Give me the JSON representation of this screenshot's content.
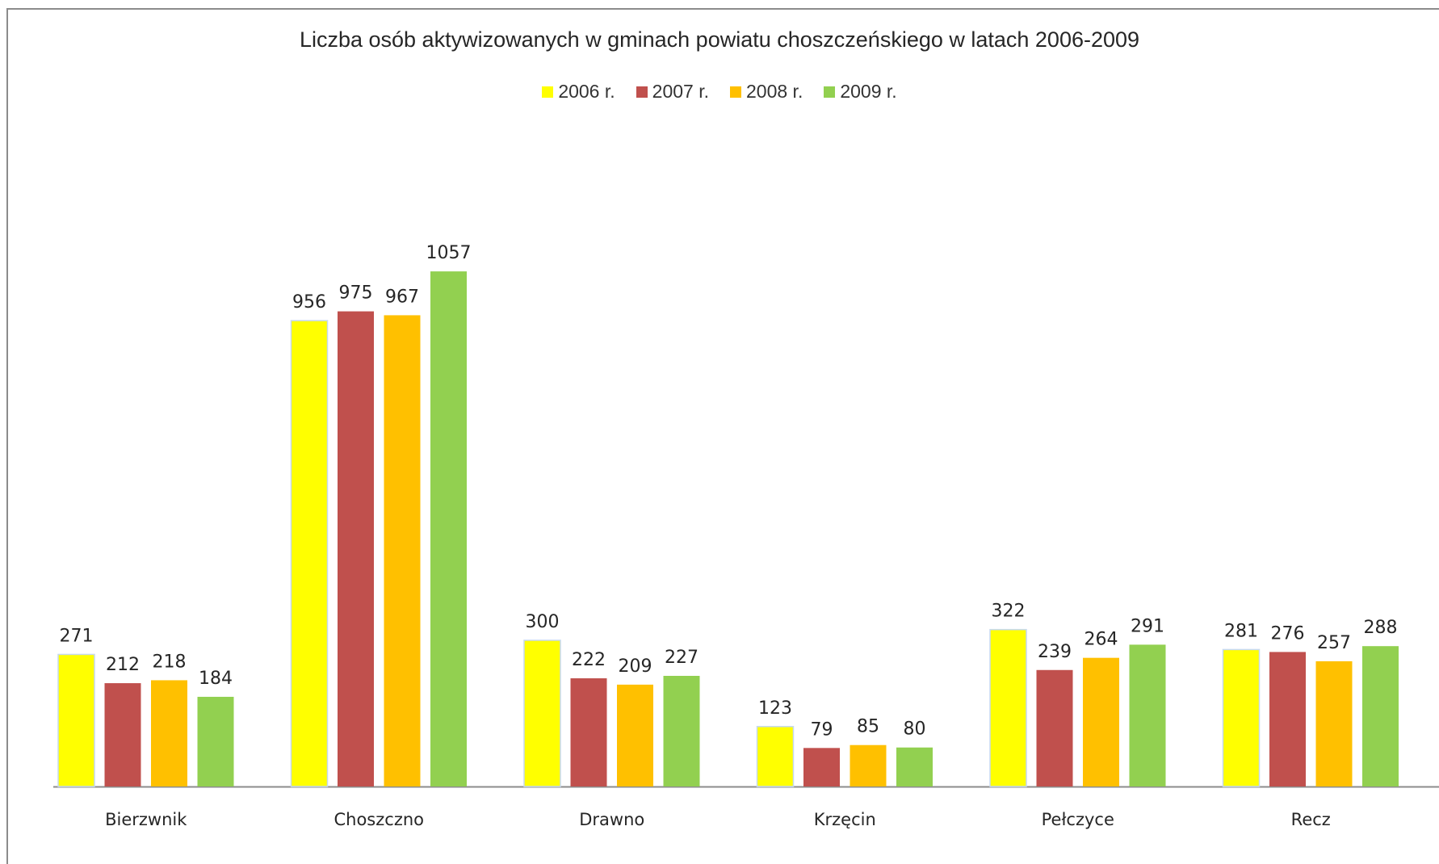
{
  "chart_data": {
    "type": "bar",
    "title": "Liczba osób aktywizowanych w gminach powiatu choszczeńskiego w latach 2006-2009",
    "categories": [
      "Bierzwnik",
      "Choszczno",
      "Drawno",
      "Krzęcin",
      "Pełczyce",
      "Recz"
    ],
    "series": [
      {
        "name": "2006 r.",
        "color": "#ffff00",
        "values": [
          271,
          956,
          300,
          123,
          322,
          281
        ]
      },
      {
        "name": "2007 r.",
        "color": "#c0504d",
        "values": [
          212,
          975,
          222,
          79,
          239,
          276
        ]
      },
      {
        "name": "2008 r.",
        "color": "#ffc000",
        "values": [
          218,
          967,
          209,
          85,
          264,
          257
        ]
      },
      {
        "name": "2009 r.",
        "color": "#92d050",
        "values": [
          184,
          1057,
          227,
          80,
          291,
          288
        ]
      }
    ],
    "xlabel": "",
    "ylabel": "",
    "ylim": [
      0,
      1057
    ],
    "grid": false,
    "legend_position": "top-center",
    "data_labels": true
  }
}
